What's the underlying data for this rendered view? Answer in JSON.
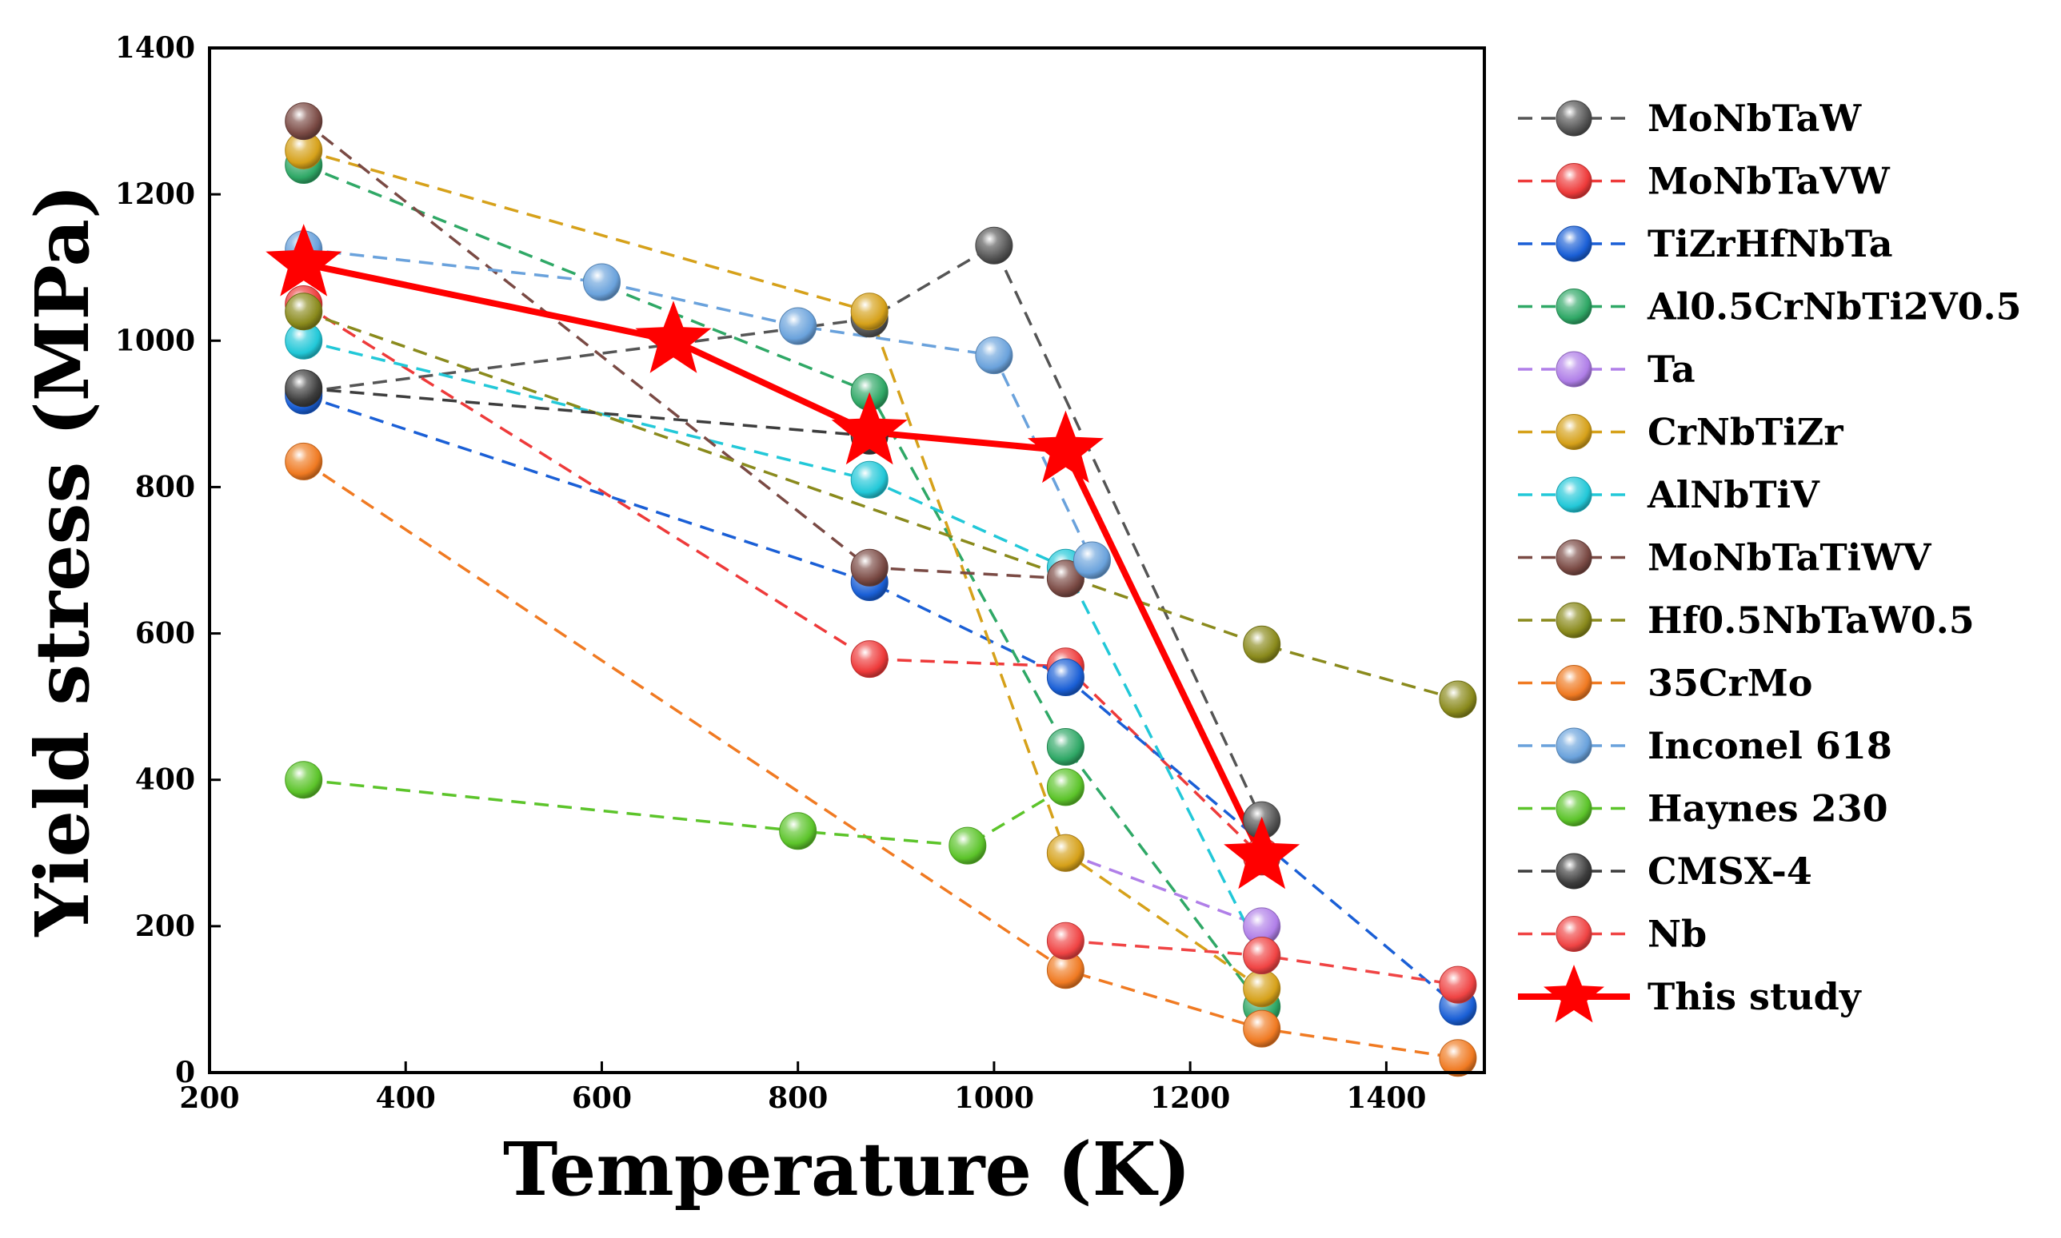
{
  "chart_data": {
    "type": "line",
    "title": "",
    "xlabel": "Temperature (K)",
    "ylabel": "Yield stress (MPa)",
    "xlim": [
      200,
      1500
    ],
    "ylim": [
      0,
      1400
    ],
    "xticks": [
      200,
      400,
      600,
      800,
      1000,
      1200,
      1400
    ],
    "yticks": [
      0,
      200,
      400,
      600,
      800,
      1000,
      1200,
      1400
    ],
    "grid": false,
    "legend_position": "right",
    "series": [
      {
        "name": "MoNbTaW",
        "color": "#555555",
        "marker": "sphere",
        "points": [
          [
            296,
            930
          ],
          [
            873,
            1030
          ],
          [
            1000,
            1130
          ],
          [
            1273,
            345
          ]
        ]
      },
      {
        "name": "MoNbTaVW",
        "color": "#ee3a3a",
        "marker": "sphere",
        "points": [
          [
            296,
            1050
          ],
          [
            873,
            565
          ],
          [
            1073,
            555
          ],
          [
            1273,
            295
          ]
        ]
      },
      {
        "name": "TiZrHfNbTa",
        "color": "#1a5fd6",
        "marker": "sphere",
        "points": [
          [
            296,
            925
          ],
          [
            873,
            670
          ],
          [
            1073,
            540
          ],
          [
            1473,
            90
          ]
        ]
      },
      {
        "name": "Al0.5CrNbTi2V0.5",
        "color": "#2fa866",
        "marker": "sphere",
        "points": [
          [
            296,
            1240
          ],
          [
            873,
            930
          ],
          [
            1073,
            445
          ],
          [
            1273,
            90
          ]
        ]
      },
      {
        "name": "Ta",
        "color": "#b07fe8",
        "marker": "sphere",
        "points": [
          [
            1073,
            300
          ],
          [
            1273,
            200
          ]
        ]
      },
      {
        "name": "CrNbTiZr",
        "color": "#d6a11a",
        "marker": "sphere",
        "points": [
          [
            296,
            1260
          ],
          [
            873,
            1040
          ],
          [
            1073,
            300
          ],
          [
            1273,
            115
          ]
        ]
      },
      {
        "name": "AlNbTiV",
        "color": "#22c8d8",
        "marker": "sphere",
        "points": [
          [
            296,
            1000
          ],
          [
            873,
            810
          ],
          [
            1073,
            690
          ],
          [
            1273,
            160
          ]
        ]
      },
      {
        "name": "MoNbTaTiWV",
        "color": "#7a4a44",
        "marker": "sphere",
        "points": [
          [
            296,
            1300
          ],
          [
            873,
            690
          ],
          [
            1073,
            675
          ]
        ]
      },
      {
        "name": "Hf0.5NbTaW0.5",
        "color": "#8a8a1c",
        "marker": "sphere",
        "points": [
          [
            296,
            1040
          ],
          [
            1273,
            585
          ],
          [
            1473,
            510
          ]
        ]
      },
      {
        "name": "35CrMo",
        "color": "#f07a22",
        "marker": "sphere",
        "points": [
          [
            296,
            835
          ],
          [
            1073,
            140
          ],
          [
            1273,
            60
          ],
          [
            1473,
            20
          ]
        ]
      },
      {
        "name": "Inconel 618",
        "color": "#6aa2dc",
        "marker": "sphere",
        "points": [
          [
            296,
            1125
          ],
          [
            600,
            1080
          ],
          [
            800,
            1020
          ],
          [
            1000,
            980
          ],
          [
            1100,
            700
          ]
        ]
      },
      {
        "name": "Haynes 230",
        "color": "#5cc42a",
        "marker": "sphere",
        "points": [
          [
            296,
            400
          ],
          [
            800,
            330
          ],
          [
            973,
            310
          ],
          [
            1073,
            390
          ]
        ]
      },
      {
        "name": "CMSX-4",
        "color": "#3d3d3d",
        "marker": "sphere",
        "points": [
          [
            296,
            935
          ],
          [
            873,
            870
          ]
        ]
      },
      {
        "name": "Nb",
        "color": "#f04444",
        "marker": "sphere",
        "points": [
          [
            1073,
            180
          ],
          [
            1273,
            160
          ],
          [
            1473,
            120
          ]
        ]
      },
      {
        "name": "This study",
        "color": "#ff0000",
        "marker": "star",
        "points": [
          [
            296,
            1105
          ],
          [
            673,
            1000
          ],
          [
            873,
            875
          ],
          [
            1073,
            850
          ],
          [
            1273,
            295
          ]
        ]
      }
    ]
  }
}
